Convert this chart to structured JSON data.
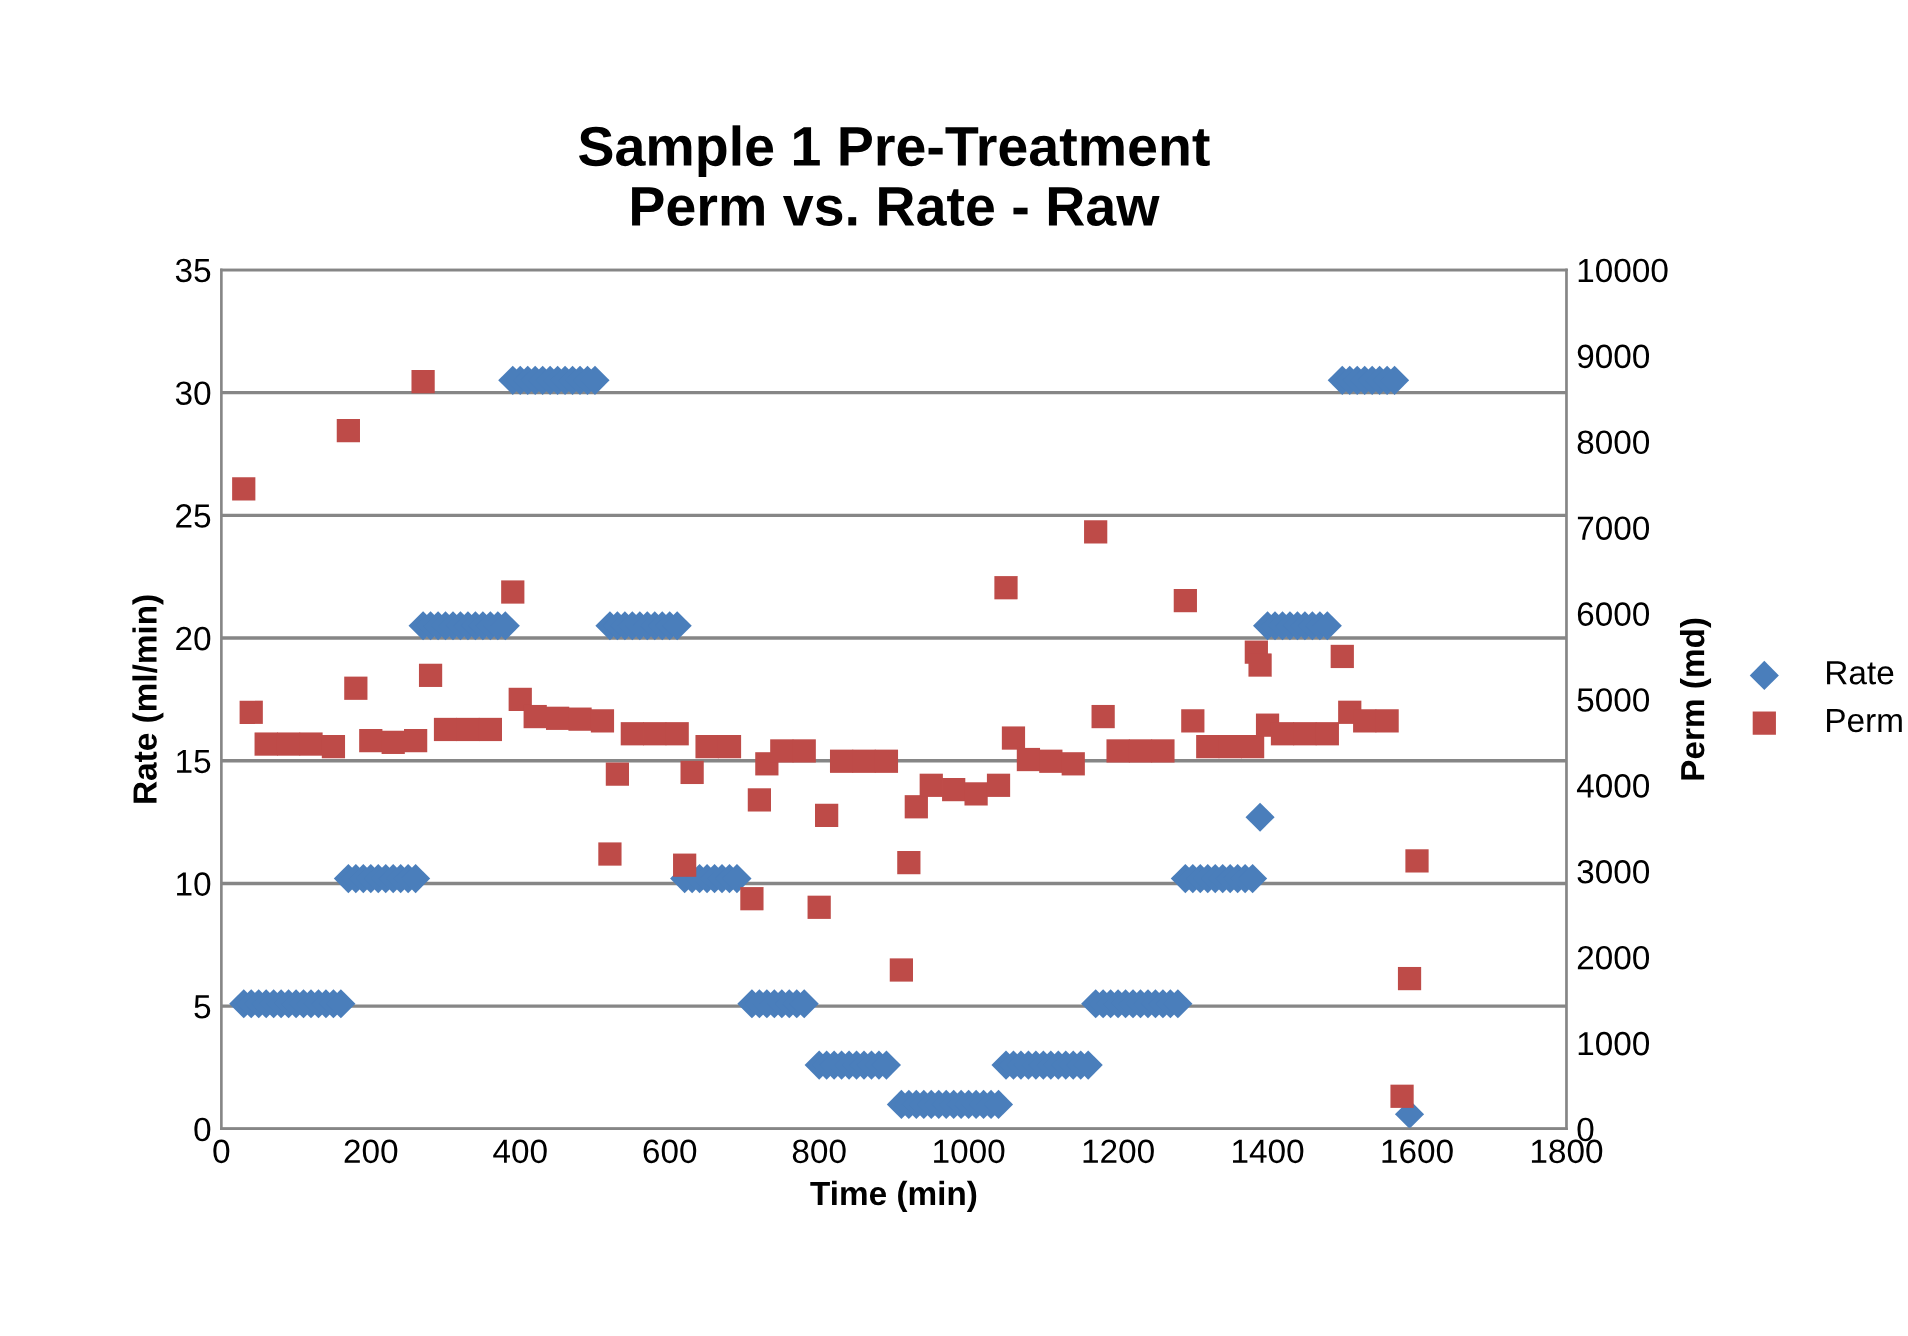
{
  "chart_data": {
    "type": "scatter",
    "title": "Sample 1 Pre-Treatment\nPerm vs. Rate - Raw",
    "xlabel": "Time (min)",
    "ylabel": "Rate (ml/min)",
    "y2label": "Perm (md)",
    "xlim": [
      0,
      1800
    ],
    "xticks": [
      0,
      200,
      400,
      600,
      800,
      1000,
      1200,
      1400,
      1600,
      1800
    ],
    "ylim": [
      0,
      35
    ],
    "yticks": [
      0,
      5,
      10,
      15,
      20,
      25,
      30,
      35
    ],
    "y2lim": [
      0,
      10000
    ],
    "y2ticks": [
      0,
      1000,
      2000,
      3000,
      4000,
      5000,
      6000,
      7000,
      8000,
      9000,
      10000
    ],
    "grid": "y",
    "legend": "right",
    "series": [
      {
        "name": "Rate",
        "color": "#4a7ebb",
        "marker": "diamond",
        "x": [
          30,
          40,
          50,
          60,
          70,
          80,
          90,
          100,
          110,
          120,
          130,
          140,
          150,
          160,
          170,
          180,
          190,
          200,
          210,
          220,
          230,
          240,
          250,
          260,
          270,
          280,
          290,
          300,
          310,
          320,
          330,
          340,
          350,
          360,
          370,
          380,
          390,
          400,
          410,
          420,
          430,
          440,
          450,
          460,
          470,
          480,
          490,
          500,
          520,
          530,
          540,
          550,
          560,
          570,
          580,
          590,
          600,
          610,
          620,
          630,
          640,
          650,
          660,
          670,
          680,
          690,
          710,
          720,
          730,
          740,
          750,
          760,
          770,
          780,
          800,
          810,
          820,
          830,
          840,
          850,
          860,
          870,
          880,
          890,
          910,
          920,
          930,
          940,
          950,
          960,
          970,
          980,
          990,
          1000,
          1010,
          1020,
          1030,
          1040,
          1050,
          1060,
          1070,
          1080,
          1090,
          1100,
          1110,
          1120,
          1130,
          1140,
          1150,
          1160,
          1170,
          1180,
          1190,
          1200,
          1210,
          1220,
          1230,
          1240,
          1250,
          1260,
          1270,
          1280,
          1290,
          1300,
          1310,
          1320,
          1330,
          1340,
          1350,
          1360,
          1370,
          1380,
          1390,
          1400,
          1410,
          1420,
          1430,
          1440,
          1450,
          1460,
          1470,
          1480,
          1500,
          1510,
          1520,
          1530,
          1540,
          1550,
          1560,
          1570,
          1590
        ],
        "values": [
          5.1,
          5.1,
          5.1,
          5.1,
          5.1,
          5.1,
          5.1,
          5.1,
          5.1,
          5.1,
          5.1,
          5.1,
          5.1,
          5.1,
          10.2,
          10.2,
          10.2,
          10.2,
          10.2,
          10.2,
          10.2,
          10.2,
          10.2,
          10.2,
          20.5,
          20.5,
          20.5,
          20.5,
          20.5,
          20.5,
          20.5,
          20.5,
          20.5,
          20.5,
          20.5,
          20.5,
          30.5,
          30.5,
          30.5,
          30.5,
          30.5,
          30.5,
          30.5,
          30.5,
          30.5,
          30.5,
          30.5,
          30.5,
          20.5,
          20.5,
          20.5,
          20.5,
          20.5,
          20.5,
          20.5,
          20.5,
          20.5,
          20.5,
          10.2,
          10.2,
          10.2,
          10.2,
          10.2,
          10.2,
          10.2,
          10.2,
          5.1,
          5.1,
          5.1,
          5.1,
          5.1,
          5.1,
          5.1,
          5.1,
          2.6,
          2.6,
          2.6,
          2.6,
          2.6,
          2.6,
          2.6,
          2.6,
          2.6,
          2.6,
          1.0,
          1.0,
          1.0,
          1.0,
          1.0,
          1.0,
          1.0,
          1.0,
          1.0,
          1.0,
          1.0,
          1.0,
          1.0,
          1.0,
          2.6,
          2.6,
          2.6,
          2.6,
          2.6,
          2.6,
          2.6,
          2.6,
          2.6,
          2.6,
          2.6,
          2.6,
          5.1,
          5.1,
          5.1,
          5.1,
          5.1,
          5.1,
          5.1,
          5.1,
          5.1,
          5.1,
          5.1,
          5.1,
          10.2,
          10.2,
          10.2,
          10.2,
          10.2,
          10.2,
          10.2,
          10.2,
          10.2,
          10.2,
          12.7,
          20.5,
          20.5,
          20.5,
          20.5,
          20.5,
          20.5,
          20.5,
          20.5,
          20.5,
          30.5,
          30.5,
          30.5,
          30.5,
          30.5,
          30.5,
          30.5,
          30.5,
          0.6
        ]
      },
      {
        "name": "Perm",
        "color": "#be4b48",
        "marker": "square",
        "axis": "y2",
        "x": [
          30,
          40,
          60,
          90,
          120,
          150,
          170,
          180,
          200,
          230,
          260,
          270,
          280,
          300,
          330,
          360,
          390,
          400,
          420,
          450,
          480,
          510,
          520,
          530,
          550,
          580,
          610,
          620,
          630,
          650,
          680,
          710,
          720,
          730,
          750,
          780,
          800,
          810,
          830,
          860,
          890,
          910,
          920,
          930,
          950,
          980,
          1010,
          1040,
          1050,
          1060,
          1080,
          1110,
          1140,
          1170,
          1180,
          1200,
          1230,
          1260,
          1290,
          1300,
          1320,
          1350,
          1380,
          1385,
          1390,
          1400,
          1420,
          1450,
          1480,
          1500,
          1510,
          1530,
          1560,
          1580,
          1590,
          1600
        ],
        "values": [
          7450,
          4850,
          4480,
          4480,
          4480,
          4450,
          8130,
          5130,
          4520,
          4500,
          4520,
          8700,
          5280,
          4650,
          4650,
          4650,
          6250,
          5000,
          4800,
          4780,
          4770,
          4750,
          3200,
          4130,
          4600,
          4600,
          4600,
          3070,
          4150,
          4450,
          4450,
          2680,
          3830,
          4250,
          4400,
          4400,
          2580,
          3650,
          4280,
          4280,
          4280,
          1850,
          3100,
          3750,
          4000,
          3950,
          3900,
          4000,
          6300,
          4550,
          4300,
          4280,
          4250,
          6950,
          4800,
          4400,
          4400,
          4400,
          6150,
          4750,
          4450,
          4450,
          4450,
          5550,
          5400,
          4700,
          4600,
          4600,
          4600,
          5500,
          4850,
          4750,
          4750,
          380,
          1750,
          3120
        ]
      }
    ]
  }
}
